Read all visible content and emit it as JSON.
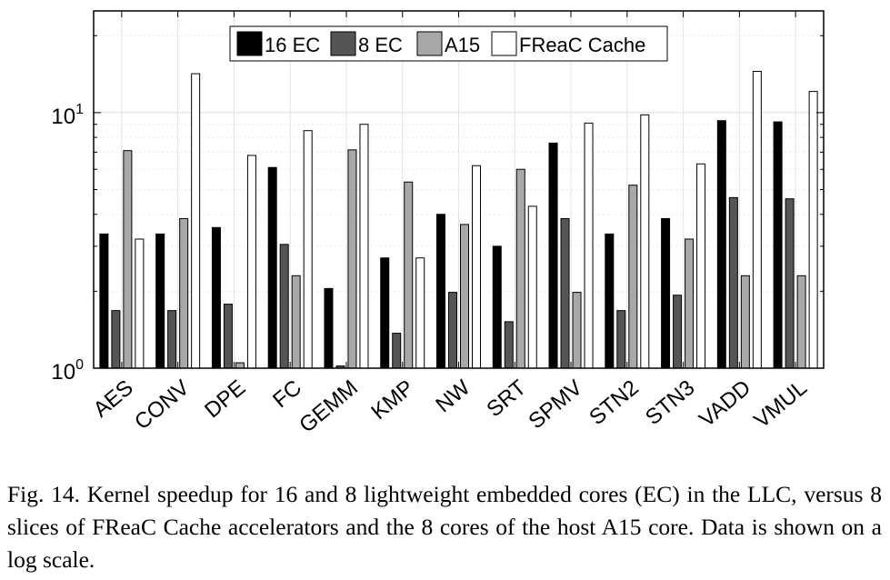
{
  "chart_data": {
    "type": "bar",
    "yscale": "log",
    "ylim": [
      1,
      25
    ],
    "y_ticks": [
      {
        "base": "10",
        "exp": "0"
      },
      {
        "base": "10",
        "exp": "1"
      }
    ],
    "grid": true,
    "legend_position": "top-center",
    "categories": [
      "AES",
      "CONV",
      "DPE",
      "FC",
      "GEMM",
      "KMP",
      "NW",
      "SRT",
      "SPMV",
      "STN2",
      "STN3",
      "VADD",
      "VMUL"
    ],
    "series": [
      {
        "name": "16 EC",
        "color": "#000000",
        "values": [
          3.35,
          3.35,
          3.55,
          6.1,
          2.05,
          2.7,
          4.0,
          3.0,
          7.6,
          3.35,
          3.85,
          9.3,
          9.2
        ]
      },
      {
        "name": "8 EC",
        "color": "#555555",
        "values": [
          1.68,
          1.68,
          1.78,
          3.05,
          1.02,
          1.37,
          1.98,
          1.52,
          3.85,
          1.68,
          1.93,
          4.65,
          4.6
        ]
      },
      {
        "name": "A15",
        "color": "#a8a8a8",
        "values": [
          7.1,
          3.85,
          1.05,
          2.3,
          7.15,
          5.35,
          3.65,
          6.0,
          1.98,
          5.2,
          3.2,
          2.3,
          2.3
        ]
      },
      {
        "name": "FReaC Cache",
        "color": "#ffffff",
        "values": [
          3.2,
          14.2,
          6.8,
          8.5,
          9.0,
          2.7,
          6.2,
          4.3,
          9.1,
          9.8,
          6.3,
          14.5,
          12.1
        ]
      }
    ]
  },
  "caption": "Fig. 14.  Kernel speedup for 16 and 8 lightweight embedded cores (EC) in the LLC, versus 8 slices of FReaC Cache accelerators and the 8 cores of the host A15 core. Data is shown on a log scale."
}
